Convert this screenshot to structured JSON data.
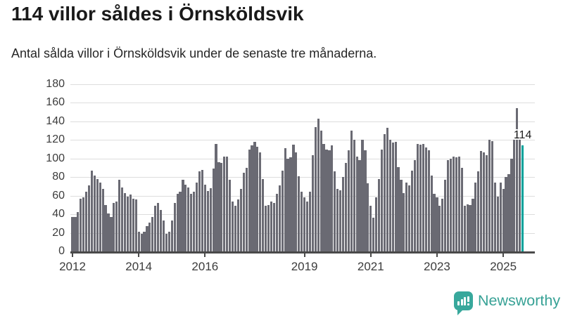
{
  "header": {
    "title": "114 villor såldes i Örnsköldsvik",
    "subtitle": "Antal sålda villor i Örnsköldsvik under de senaste tre månaderna."
  },
  "chart_data": {
    "type": "bar",
    "title": "114 villor såldes i Örnsköldsvik",
    "subtitle": "Antal sålda villor i Örnsköldsvik under de senaste tre månaderna.",
    "series_name": "Antal sålda villor",
    "x_start_month": "2012-01",
    "x_end_month": "2025-08",
    "frequency": "monthly",
    "ylim": [
      0,
      180
    ],
    "y_ticks": [
      0,
      20,
      40,
      60,
      80,
      100,
      120,
      140,
      160,
      180
    ],
    "x_tick_labels": [
      "2012",
      "2014",
      "2016",
      "2019",
      "2021",
      "2023",
      "2025"
    ],
    "grid": "horizontal",
    "bar_color": "#6a6a73",
    "highlight_color": "#00a29b",
    "highlight_label": "114",
    "highlight_value": 114,
    "values": [
      37,
      37,
      42,
      57,
      58,
      64,
      71,
      87,
      82,
      78,
      74,
      67,
      50,
      41,
      37,
      52,
      54,
      77,
      69,
      63,
      59,
      61,
      57,
      56,
      21,
      19,
      21,
      27,
      31,
      37,
      49,
      52,
      45,
      33,
      19,
      21,
      33,
      52,
      62,
      64,
      77,
      72,
      69,
      62,
      64,
      74,
      86,
      88,
      72,
      65,
      68,
      89,
      116,
      96,
      95,
      102,
      102,
      77,
      54,
      49,
      56,
      67,
      85,
      90,
      110,
      114,
      118,
      113,
      107,
      78,
      49,
      50,
      54,
      52,
      62,
      71,
      87,
      111,
      100,
      101,
      115,
      107,
      81,
      64,
      58,
      54,
      64,
      104,
      134,
      143,
      130,
      116,
      110,
      109,
      114,
      86,
      67,
      66,
      80,
      95,
      109,
      130,
      120,
      102,
      98,
      120,
      109,
      73,
      49,
      36,
      58,
      78,
      110,
      126,
      133,
      120,
      117,
      118,
      91,
      77,
      63,
      74,
      71,
      87,
      98,
      116,
      115,
      116,
      112,
      109,
      82,
      62,
      58,
      49,
      57,
      77,
      98,
      100,
      102,
      101,
      102,
      90,
      49,
      51,
      50,
      57,
      74,
      86,
      108,
      107,
      104,
      120,
      119,
      74,
      59,
      74,
      67,
      80,
      83,
      100,
      121,
      154,
      120,
      114
    ]
  },
  "footer": {
    "brand": "Newsworthy"
  },
  "colors": {
    "accent_teal": "#00a29b",
    "brand_teal": "#38a89c",
    "bar_gray": "#6a6a73",
    "text_dark": "#1a1a1a",
    "axis_text": "#3c3c3c",
    "gridline": "#dddddd"
  }
}
